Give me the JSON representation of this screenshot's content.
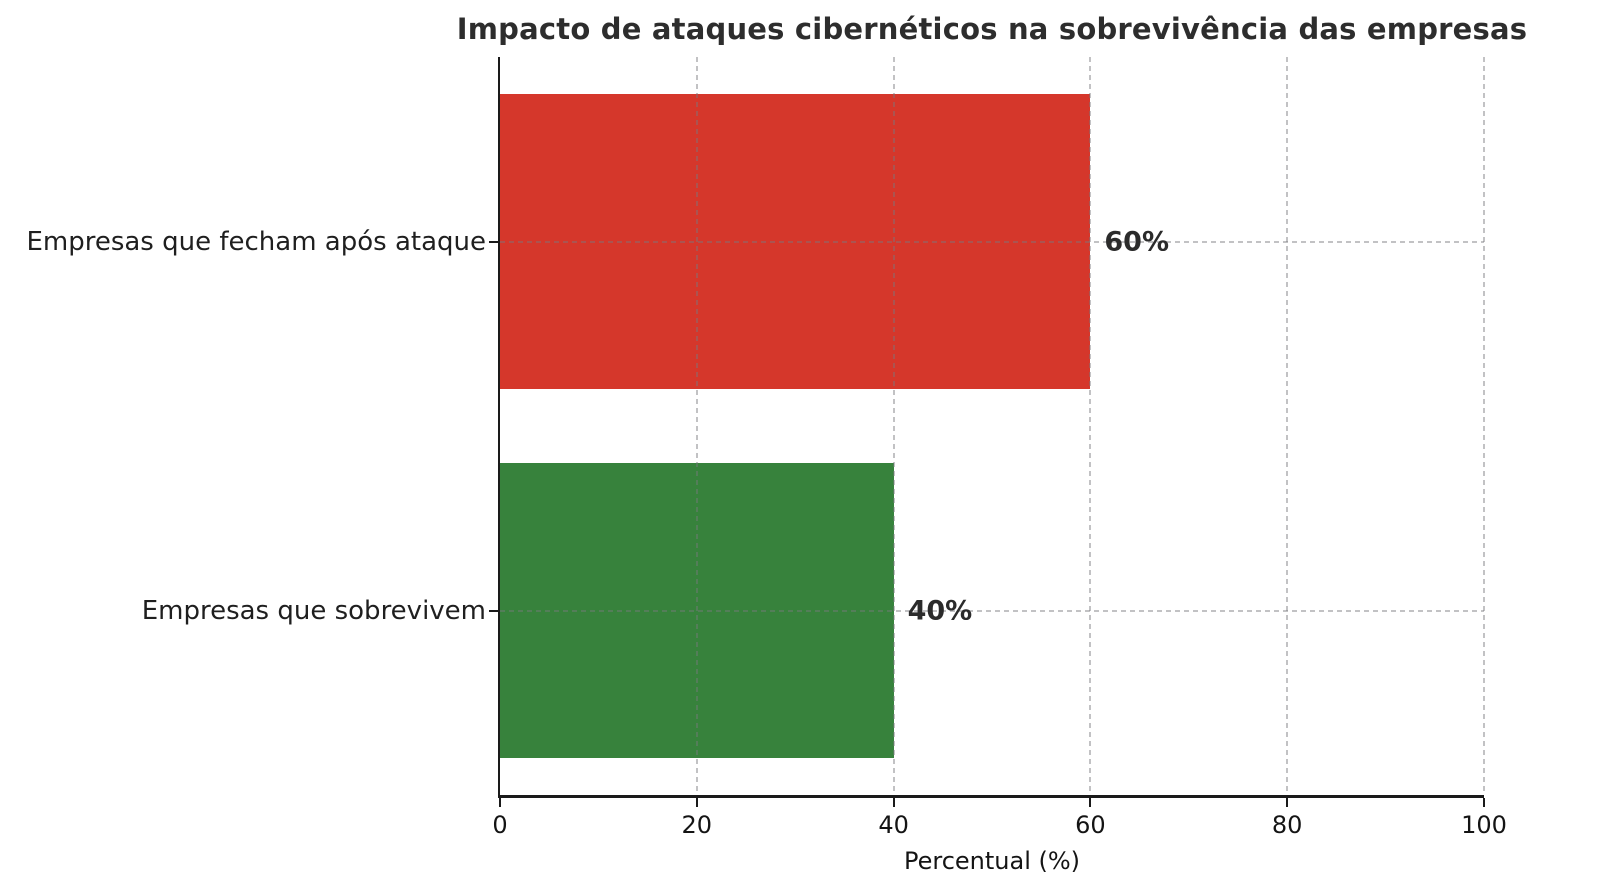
{
  "chart_data": {
    "type": "bar",
    "orientation": "horizontal",
    "title": "Impacto de ataques cibernéticos na sobrevivência das empresas",
    "xlabel": "Percentual (%)",
    "ylabel": "",
    "categories": [
      "Empresas que fecham após ataque",
      "Empresas que sobrevivem"
    ],
    "values": [
      60,
      40
    ],
    "value_labels": [
      "60%",
      "40%"
    ],
    "bar_colors": [
      "#d5372b",
      "#37823c"
    ],
    "xlim": [
      0,
      100
    ],
    "xtick_labels": [
      "0",
      "20",
      "40",
      "60",
      "80",
      "100"
    ],
    "xtick_values": [
      0,
      20,
      40,
      60,
      80,
      100
    ],
    "grid": "dashed",
    "legend_position": "none"
  },
  "colors": {
    "background": "#ffffff",
    "axis": "#1a1a1a",
    "grid": "#c4c4c8",
    "title_text": "#2d2d2d",
    "tick_text": "#141414",
    "bar_closed": "#d5372b",
    "bar_survive": "#37823c"
  }
}
